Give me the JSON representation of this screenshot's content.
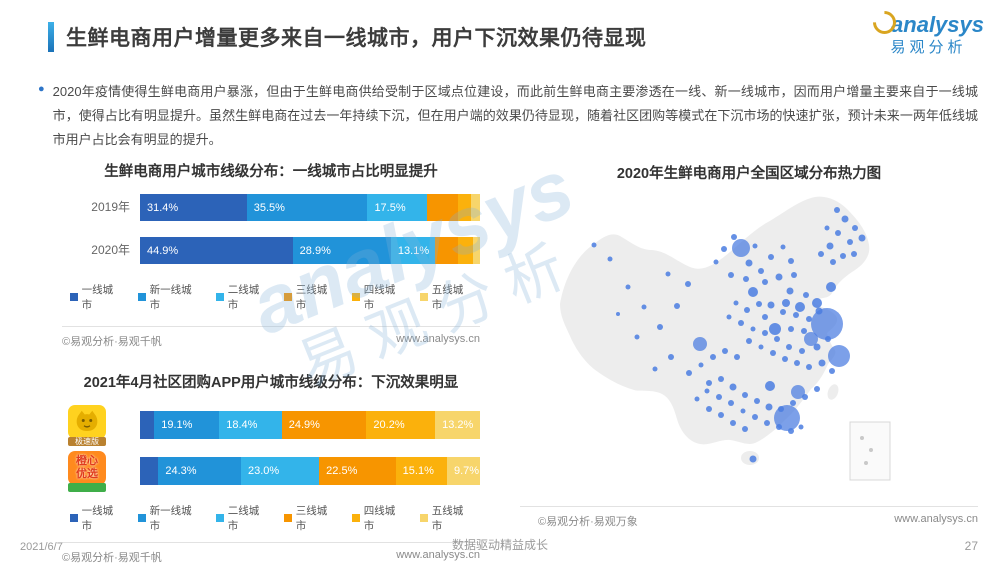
{
  "page": {
    "title": "生鲜电商用户增量更多来自一线城市，用户下沉效果仍待显现",
    "logo": {
      "brand": "analysys",
      "brand_cn": "易观分析"
    },
    "paragraph": "2020年疫情使得生鲜电商用户暴涨，但由于生鲜电商供给受制于区域点位建设，而此前生鲜电商主要渗透在一线、新一线城市，因而用户增量主要来自于一线城市，使得占比有明显提升。虽然生鲜电商在过去一年持续下沉，但在用户端的效果仍待显现，随着社区团购等模式在下沉市场的快速扩张，预计未来一两年低线城市用户占比会有明显的提升。",
    "watermark": {
      "en": "analysys",
      "cn": "易观分析"
    },
    "footer": {
      "date": "2021/6/7",
      "slogan": "数据驱动精益成长",
      "page_number": "27"
    }
  },
  "legend": {
    "items": [
      {
        "label": "一线城市",
        "color": "#2c63b8"
      },
      {
        "label": "新一线城市",
        "color": "#2193d9"
      },
      {
        "label": "二线城市",
        "color": "#33b4ea"
      },
      {
        "label": "三线城市",
        "color": "#f79500"
      },
      {
        "label": "四线城市",
        "color": "#fbb10c"
      },
      {
        "label": "五线城市",
        "color": "#f7d56b"
      }
    ]
  },
  "chart_data": [
    {
      "type": "bar",
      "variant": "stacked-horizontal",
      "title": "生鲜电商用户城市线级分布：一线城市占比明显提升",
      "unit": "%",
      "tiers": [
        "一线城市",
        "新一线城市",
        "二线城市",
        "三线城市",
        "四线城市",
        "五线城市"
      ],
      "categories": [
        "2019年",
        "2020年"
      ],
      "series": [
        {
          "category": "2019年",
          "values": [
            31.4,
            35.5,
            17.5,
            9.0,
            4.1,
            2.5
          ],
          "labels": [
            "31.4%",
            "35.5%",
            "17.5%",
            "",
            "",
            ""
          ]
        },
        {
          "category": "2020年",
          "values": [
            44.9,
            28.9,
            13.1,
            6.6,
            4.4,
            2.1
          ],
          "labels": [
            "44.9%",
            "28.9%",
            "13.1%",
            "",
            "",
            ""
          ]
        }
      ],
      "note": "三线/四线/五线段在原图中未标注数值，宽度为估算",
      "source_left": "©易观分析·易观千帆",
      "source_right": "www.analysys.cn"
    },
    {
      "type": "bar",
      "variant": "stacked-horizontal",
      "title": "2021年4月社区团购APP用户城市线级分布：下沉效果明显",
      "unit": "%",
      "tiers": [
        "一线城市",
        "新一线城市",
        "二线城市",
        "三线城市",
        "四线城市",
        "五线城市"
      ],
      "series": [
        {
          "icon": {
            "style": "cat",
            "bg": "#ffd21f",
            "ribbon": {
              "text": "极速版",
              "bg": "#b9812f"
            }
          },
          "values": [
            4.2,
            19.1,
            18.4,
            24.9,
            20.2,
            13.2
          ],
          "labels": [
            "",
            "19.1%",
            "18.4%",
            "24.9%",
            "20.2%",
            "13.2%"
          ]
        },
        {
          "icon": {
            "style": "text",
            "bg": "#ff8a1e",
            "lines": [
              "橙心",
              "优选"
            ],
            "ribbon": {
              "text": "",
              "bg": "#3fae49"
            }
          },
          "values": [
            5.4,
            24.3,
            23.0,
            22.5,
            15.1,
            9.7
          ],
          "labels": [
            "",
            "24.3%",
            "23.0%",
            "22.5%",
            "15.1%",
            "9.7%"
          ]
        }
      ],
      "note": "一线城市段在原图中未标注数值，宽度为估算",
      "source_left": "©易观分析·易观千帆",
      "source_right": "www.analysys.cn"
    },
    {
      "type": "scatter",
      "variant": "geo-heatmap",
      "title": "2020年生鲜电商用户全国区域分布热力图",
      "region": "China",
      "dot_color": "#4a7ce0",
      "land_color": "#ededed",
      "note": "点位为示意，近似原图分布：华东/华北/华南密集，西部稀疏",
      "dots": [
        [
          287,
          138,
          16
        ],
        [
          299,
          170,
          11
        ],
        [
          247,
          232,
          13
        ],
        [
          201,
          62,
          9
        ],
        [
          160,
          158,
          7
        ],
        [
          271,
          153,
          7
        ],
        [
          235,
          143,
          6
        ],
        [
          258,
          206,
          7
        ],
        [
          230,
          200,
          5
        ],
        [
          213,
          106,
          5
        ],
        [
          260,
          121,
          5
        ],
        [
          291,
          101,
          5
        ],
        [
          277,
          117,
          5
        ],
        [
          246,
          117,
          4
        ],
        [
          297,
          24,
          3
        ],
        [
          305,
          33,
          3.5
        ],
        [
          315,
          42,
          3
        ],
        [
          322,
          52,
          3.5
        ],
        [
          310,
          56,
          3
        ],
        [
          298,
          47,
          3
        ],
        [
          290,
          60,
          3.5
        ],
        [
          303,
          70,
          3
        ],
        [
          314,
          68,
          3
        ],
        [
          287,
          42,
          2.5
        ],
        [
          293,
          76,
          3
        ],
        [
          281,
          68,
          3
        ],
        [
          194,
          51,
          3
        ],
        [
          184,
          63,
          3
        ],
        [
          209,
          77,
          3.5
        ],
        [
          221,
          85,
          3
        ],
        [
          191,
          89,
          3
        ],
        [
          176,
          76,
          2.5
        ],
        [
          206,
          93,
          3
        ],
        [
          231,
          71,
          3
        ],
        [
          243,
          61,
          2.5
        ],
        [
          251,
          75,
          3
        ],
        [
          239,
          91,
          3.5
        ],
        [
          254,
          89,
          3
        ],
        [
          225,
          96,
          3
        ],
        [
          215,
          60,
          2.5
        ],
        [
          250,
          105,
          3.5
        ],
        [
          266,
          109,
          3
        ],
        [
          279,
          125,
          3.5
        ],
        [
          269,
          133,
          3
        ],
        [
          256,
          129,
          3
        ],
        [
          243,
          126,
          3
        ],
        [
          231,
          119,
          3.5
        ],
        [
          219,
          118,
          3
        ],
        [
          207,
          124,
          3
        ],
        [
          196,
          117,
          2.5
        ],
        [
          225,
          131,
          3
        ],
        [
          251,
          143,
          3
        ],
        [
          264,
          145,
          3
        ],
        [
          277,
          161,
          3.5
        ],
        [
          288,
          153,
          3
        ],
        [
          262,
          165,
          3
        ],
        [
          249,
          161,
          3
        ],
        [
          237,
          153,
          3
        ],
        [
          225,
          147,
          3
        ],
        [
          213,
          143,
          2.5
        ],
        [
          201,
          137,
          3
        ],
        [
          189,
          131,
          2.5
        ],
        [
          282,
          177,
          3.5
        ],
        [
          292,
          185,
          3
        ],
        [
          269,
          181,
          3
        ],
        [
          257,
          177,
          3
        ],
        [
          245,
          173,
          3
        ],
        [
          233,
          167,
          3
        ],
        [
          221,
          161,
          2.5
        ],
        [
          209,
          155,
          3
        ],
        [
          197,
          171,
          3
        ],
        [
          185,
          165,
          3
        ],
        [
          173,
          171,
          3
        ],
        [
          161,
          179,
          2.5
        ],
        [
          149,
          187,
          3
        ],
        [
          169,
          197,
          3
        ],
        [
          181,
          193,
          3
        ],
        [
          193,
          201,
          3.5
        ],
        [
          205,
          209,
          3
        ],
        [
          217,
          215,
          3
        ],
        [
          229,
          221,
          3.5
        ],
        [
          241,
          223,
          3
        ],
        [
          253,
          217,
          3
        ],
        [
          265,
          211,
          3
        ],
        [
          277,
          203,
          3
        ],
        [
          239,
          241,
          3
        ],
        [
          227,
          237,
          3
        ],
        [
          215,
          231,
          3
        ],
        [
          203,
          225,
          2.5
        ],
        [
          191,
          217,
          3
        ],
        [
          179,
          211,
          3
        ],
        [
          167,
          205,
          2.5
        ],
        [
          157,
          213,
          2.5
        ],
        [
          169,
          223,
          3
        ],
        [
          181,
          229,
          3
        ],
        [
          193,
          237,
          3
        ],
        [
          205,
          243,
          3
        ],
        [
          251,
          245,
          3
        ],
        [
          261,
          241,
          2.5
        ],
        [
          213,
          273,
          3.5
        ],
        [
          120,
          141,
          3
        ],
        [
          104,
          121,
          2.5
        ],
        [
          88,
          101,
          2.5
        ],
        [
          70,
          73,
          2.5
        ],
        [
          54,
          59,
          2.5
        ],
        [
          97,
          151,
          2.5
        ],
        [
          131,
          171,
          3
        ],
        [
          115,
          183,
          2.5
        ],
        [
          78,
          128,
          2
        ],
        [
          137,
          120,
          3
        ],
        [
          148,
          98,
          3
        ],
        [
          128,
          88,
          2.5
        ]
      ],
      "inset_box": {
        "x": 310,
        "y": 236,
        "w": 40,
        "h": 58
      },
      "inset_dots": [
        [
          322,
          252,
          2
        ],
        [
          331,
          264,
          2
        ],
        [
          326,
          277,
          2
        ]
      ],
      "source_left": "©易观分析·易观万象",
      "source_right": "www.analysys.cn"
    }
  ]
}
